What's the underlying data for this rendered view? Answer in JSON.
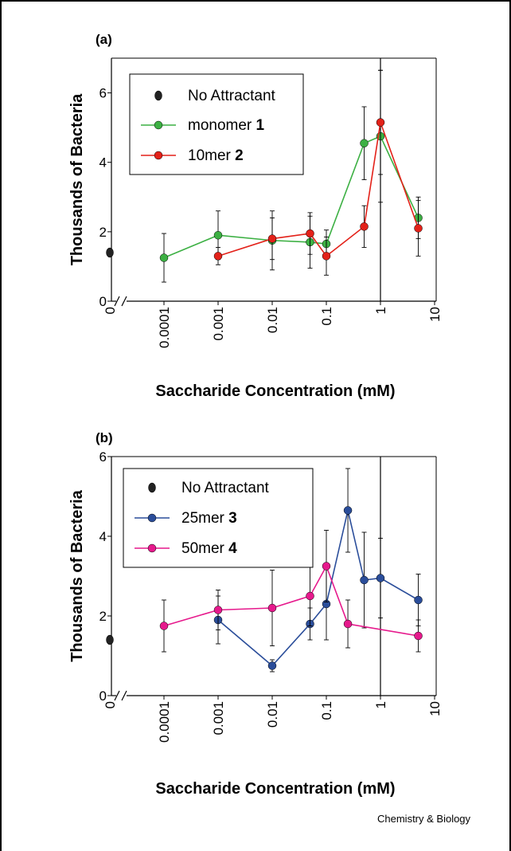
{
  "credit": "Chemistry & Biology",
  "colors": {
    "black": "#000000",
    "green": "#3cb043",
    "red": "#e32119",
    "blue": "#2a4d9a",
    "magenta": "#e6198c",
    "dark": "#222222"
  },
  "chart_data": [
    {
      "type": "line",
      "panel_label": "(a)",
      "xlabel": "Saccharide Concentration (mM)",
      "ylabel": "Thousands of Bacteria",
      "x_scale": "log",
      "xlim": [
        3e-05,
        10
      ],
      "ylim": [
        0,
        7
      ],
      "yticks": [
        0,
        2,
        4,
        6
      ],
      "xticks": [
        "0",
        "0.0001",
        "0.001",
        "0.01",
        "0.1",
        "1",
        "10"
      ],
      "xtick_values": [
        0,
        0.0001,
        0.001,
        0.01,
        0.1,
        1,
        10
      ],
      "axis_break": true,
      "vertical_line_x": 1,
      "legend_position": "top-left",
      "series": [
        {
          "name": "No Attractant",
          "color": "#222222",
          "marker_only": true,
          "x": [
            0
          ],
          "y": [
            1.4
          ],
          "err": [
            0
          ]
        },
        {
          "name": "monomer",
          "name_bold": "1",
          "color": "#3cb043",
          "x": [
            0.0001,
            0.001,
            0.01,
            0.05,
            0.1,
            0.5,
            1,
            5
          ],
          "y": [
            1.25,
            1.9,
            1.75,
            1.7,
            1.65,
            4.55,
            4.75,
            2.4
          ],
          "err": [
            0.7,
            0.7,
            0.85,
            0.75,
            0.4,
            1.05,
            1.9,
            0.6
          ]
        },
        {
          "name": "10mer",
          "name_bold": "2",
          "color": "#e32119",
          "x": [
            0.001,
            0.01,
            0.05,
            0.1,
            0.5,
            1,
            5
          ],
          "y": [
            1.3,
            1.8,
            1.95,
            1.3,
            2.15,
            5.15,
            2.1
          ],
          "err": [
            0.25,
            0.6,
            0.6,
            0.55,
            0.6,
            1.5,
            0.8
          ]
        }
      ]
    },
    {
      "type": "line",
      "panel_label": "(b)",
      "xlabel": "Saccharide Concentration (mM)",
      "ylabel": "Thousands of Bacteria",
      "x_scale": "log",
      "xlim": [
        3e-05,
        10
      ],
      "ylim": [
        0,
        6
      ],
      "yticks": [
        0,
        2,
        4,
        6
      ],
      "xticks": [
        "0",
        "0.0001",
        "0.001",
        "0.01",
        "0.1",
        "1",
        "10"
      ],
      "xtick_values": [
        0,
        0.0001,
        0.001,
        0.01,
        0.1,
        1,
        10
      ],
      "axis_break": true,
      "vertical_line_x": 1,
      "legend_position": "top-left",
      "series": [
        {
          "name": "No Attractant",
          "color": "#222222",
          "marker_only": true,
          "x": [
            0
          ],
          "y": [
            1.4
          ],
          "err": [
            0
          ]
        },
        {
          "name": "25mer",
          "name_bold": "3",
          "color": "#2a4d9a",
          "x": [
            0.001,
            0.01,
            0.05,
            0.1,
            0.25,
            0.5,
            1,
            5
          ],
          "y": [
            1.9,
            0.75,
            1.8,
            2.3,
            4.65,
            2.9,
            2.95,
            2.4
          ],
          "err": [
            0.6,
            0.15,
            0.4,
            0.9,
            1.05,
            1.2,
            1.0,
            0.65
          ]
        },
        {
          "name": "50mer",
          "name_bold": "4",
          "color": "#e6198c",
          "x": [
            0.0001,
            0.001,
            0.01,
            0.05,
            0.1,
            0.25,
            5
          ],
          "y": [
            1.75,
            2.15,
            2.2,
            2.5,
            3.25,
            1.8,
            1.5
          ],
          "err": [
            0.65,
            0.5,
            0.95,
            0.75,
            0.9,
            0.6,
            0.4
          ]
        }
      ]
    }
  ]
}
